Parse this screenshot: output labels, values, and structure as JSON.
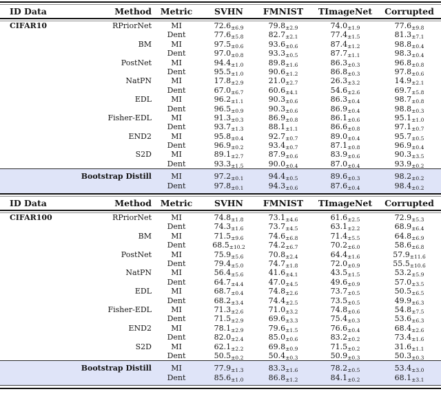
{
  "columns": [
    "ID Data",
    "Method",
    "Metric",
    "SVHN",
    "FMNIST",
    "TImageNet",
    "Corrupted"
  ],
  "highlight_color": "#dfe4f8",
  "sections": [
    {
      "id_data": "CIFAR10",
      "methods": [
        {
          "name": "RPriorNet",
          "rows": [
            {
              "metric": "MI",
              "values": [
                [
                  "72.6",
                  "±6.9"
                ],
                [
                  "79.8",
                  "±2.9"
                ],
                [
                  "74.0",
                  "±1.9"
                ],
                [
                  "77.6",
                  "±9.8"
                ]
              ]
            },
            {
              "metric": "Dent",
              "values": [
                [
                  "77.6",
                  "±5.8"
                ],
                [
                  "82.7",
                  "±2.1"
                ],
                [
                  "77.4",
                  "±1.5"
                ],
                [
                  "81.3",
                  "±7.1"
                ]
              ]
            }
          ]
        },
        {
          "name": "BM",
          "rows": [
            {
              "metric": "MI",
              "values": [
                [
                  "97.5",
                  "±0.6"
                ],
                [
                  "93.6",
                  "±0.6"
                ],
                [
                  "87.4",
                  "±1.2"
                ],
                [
                  "98.8",
                  "±0.4"
                ]
              ]
            },
            {
              "metric": "Dent",
              "values": [
                [
                  "97.0",
                  "±0.8"
                ],
                [
                  "93.3",
                  "±0.5"
                ],
                [
                  "87.7",
                  "±1.1"
                ],
                [
                  "98.3",
                  "±0.4"
                ]
              ]
            }
          ]
        },
        {
          "name": "PostNet",
          "rows": [
            {
              "metric": "MI",
              "values": [
                [
                  "94.4",
                  "±1.0"
                ],
                [
                  "89.8",
                  "±1.6"
                ],
                [
                  "86.3",
                  "±0.3"
                ],
                [
                  "96.8",
                  "±0.8"
                ]
              ]
            },
            {
              "metric": "Dent",
              "values": [
                [
                  "95.5",
                  "±1.0"
                ],
                [
                  "90.6",
                  "±1.2"
                ],
                [
                  "86.8",
                  "±0.3"
                ],
                [
                  "97.8",
                  "±0.6"
                ]
              ]
            }
          ]
        },
        {
          "name": "NatPN",
          "rows": [
            {
              "metric": "MI",
              "values": [
                [
                  "17.8",
                  "±2.9"
                ],
                [
                  "21.0",
                  "±2.7"
                ],
                [
                  "26.3",
                  "±3.2"
                ],
                [
                  "14.9",
                  "±2.1"
                ]
              ]
            },
            {
              "metric": "Dent",
              "values": [
                [
                  "67.0",
                  "±6.7"
                ],
                [
                  "60.6",
                  "±4.1"
                ],
                [
                  "54.6",
                  "±2.6"
                ],
                [
                  "69.7",
                  "±5.8"
                ]
              ]
            }
          ]
        },
        {
          "name": "EDL",
          "rows": [
            {
              "metric": "MI",
              "values": [
                [
                  "96.2",
                  "±1.1"
                ],
                [
                  "90.3",
                  "±0.6"
                ],
                [
                  "86.3",
                  "±0.4"
                ],
                [
                  "98.7",
                  "±0.8"
                ]
              ]
            },
            {
              "metric": "Dent",
              "values": [
                [
                  "96.5",
                  "±0.9"
                ],
                [
                  "90.3",
                  "±0.6"
                ],
                [
                  "86.9",
                  "±0.4"
                ],
                [
                  "98.8",
                  "±0.3"
                ]
              ]
            }
          ]
        },
        {
          "name": "Fisher-EDL",
          "rows": [
            {
              "metric": "MI",
              "values": [
                [
                  "91.3",
                  "±0.3"
                ],
                [
                  "86.9",
                  "±0.8"
                ],
                [
                  "86.1",
                  "±0.6"
                ],
                [
                  "95.1",
                  "±1.0"
                ]
              ]
            },
            {
              "metric": "Dent",
              "values": [
                [
                  "93.7",
                  "±1.3"
                ],
                [
                  "88.1",
                  "±1.1"
                ],
                [
                  "86.6",
                  "±0.8"
                ],
                [
                  "97.1",
                  "±0.7"
                ]
              ]
            }
          ]
        },
        {
          "name": "END2",
          "rows": [
            {
              "metric": "MI",
              "values": [
                [
                  "95.8",
                  "±0.4"
                ],
                [
                  "92.7",
                  "±0.7"
                ],
                [
                  "89.0",
                  "±0.4"
                ],
                [
                  "95.7",
                  "±0.5"
                ]
              ]
            },
            {
              "metric": "Dent",
              "values": [
                [
                  "96.9",
                  "±0.2"
                ],
                [
                  "93.4",
                  "±0.7"
                ],
                [
                  "87.1",
                  "±0.8"
                ],
                [
                  "96.9",
                  "±0.4"
                ]
              ]
            }
          ]
        },
        {
          "name": "S2D",
          "rows": [
            {
              "metric": "MI",
              "values": [
                [
                  "89.1",
                  "±2.7"
                ],
                [
                  "87.9",
                  "±0.6"
                ],
                [
                  "83.9",
                  "±0.6"
                ],
                [
                  "90.3",
                  "±3.5"
                ]
              ]
            },
            {
              "metric": "Dent",
              "values": [
                [
                  "93.3",
                  "±1.5"
                ],
                [
                  "90.0",
                  "±0.4"
                ],
                [
                  "87.0",
                  "±0.4"
                ],
                [
                  "93.9",
                  "±0.2"
                ]
              ]
            }
          ]
        }
      ],
      "distill": {
        "name": "Bootstrap Distill",
        "rows": [
          {
            "metric": "MI",
            "values": [
              [
                "97.2",
                "±0.1"
              ],
              [
                "94.4",
                "±0.5"
              ],
              [
                "89.6",
                "±0.3"
              ],
              [
                "98.2",
                "±0.2"
              ]
            ]
          },
          {
            "metric": "Dent",
            "values": [
              [
                "97.8",
                "±0.1"
              ],
              [
                "94.3",
                "±0.6"
              ],
              [
                "87.6",
                "±0.4"
              ],
              [
                "98.4",
                "±0.2"
              ]
            ]
          }
        ]
      }
    },
    {
      "id_data": "CIFAR100",
      "methods": [
        {
          "name": "RPriorNet",
          "rows": [
            {
              "metric": "MI",
              "values": [
                [
                  "74.8",
                  "±1.8"
                ],
                [
                  "73.1",
                  "±4.6"
                ],
                [
                  "61.6",
                  "±2.5"
                ],
                [
                  "72.9",
                  "±5.3"
                ]
              ]
            },
            {
              "metric": "Dent",
              "values": [
                [
                  "74.3",
                  "±1.6"
                ],
                [
                  "73.7",
                  "±4.5"
                ],
                [
                  "63.1",
                  "±2.2"
                ],
                [
                  "68.9",
                  "±6.4"
                ]
              ]
            }
          ]
        },
        {
          "name": "BM",
          "rows": [
            {
              "metric": "MI",
              "values": [
                [
                  "71.5",
                  "±9.6"
                ],
                [
                  "74.6",
                  "±6.8"
                ],
                [
                  "71.4",
                  "±5.5"
                ],
                [
                  "64.8",
                  "±6.9"
                ]
              ]
            },
            {
              "metric": "Dent",
              "values": [
                [
                  "68.5",
                  "±10.2"
                ],
                [
                  "74.2",
                  "±6.7"
                ],
                [
                  "70.2",
                  "±6.0"
                ],
                [
                  "58.6",
                  "±6.8"
                ]
              ]
            }
          ]
        },
        {
          "name": "PostNet",
          "rows": [
            {
              "metric": "MI",
              "values": [
                [
                  "75.9",
                  "±5.6"
                ],
                [
                  "70.8",
                  "±2.4"
                ],
                [
                  "64.4",
                  "±1.6"
                ],
                [
                  "57.9",
                  "±11.6"
                ]
              ]
            },
            {
              "metric": "Dent",
              "values": [
                [
                  "79.4",
                  "±5.0"
                ],
                [
                  "74.7",
                  "±1.8"
                ],
                [
                  "72.0",
                  "±0.9"
                ],
                [
                  "55.5",
                  "±10.6"
                ]
              ]
            }
          ]
        },
        {
          "name": "NatPN",
          "rows": [
            {
              "metric": "MI",
              "values": [
                [
                  "56.4",
                  "±5.6"
                ],
                [
                  "41.6",
                  "±4.1"
                ],
                [
                  "43.5",
                  "±1.5"
                ],
                [
                  "53.2",
                  "±5.9"
                ]
              ]
            },
            {
              "metric": "Dent",
              "values": [
                [
                  "64.7",
                  "±4.4"
                ],
                [
                  "47.0",
                  "±4.5"
                ],
                [
                  "49.6",
                  "±0.9"
                ],
                [
                  "57.0",
                  "±3.5"
                ]
              ]
            }
          ]
        },
        {
          "name": "EDL",
          "rows": [
            {
              "metric": "MI",
              "values": [
                [
                  "68.7",
                  "±0.4"
                ],
                [
                  "74.8",
                  "±2.6"
                ],
                [
                  "73.7",
                  "±0.5"
                ],
                [
                  "50.5",
                  "±6.5"
                ]
              ]
            },
            {
              "metric": "Dent",
              "values": [
                [
                  "68.2",
                  "±3.4"
                ],
                [
                  "74.4",
                  "±2.5"
                ],
                [
                  "73.5",
                  "±0.5"
                ],
                [
                  "49.9",
                  "±6.3"
                ]
              ]
            }
          ]
        },
        {
          "name": "Fisher-EDL",
          "rows": [
            {
              "metric": "MI",
              "values": [
                [
                  "71.3",
                  "±2.6"
                ],
                [
                  "71.0",
                  "±3.2"
                ],
                [
                  "74.8",
                  "±0.6"
                ],
                [
                  "54.8",
                  "±7.5"
                ]
              ]
            },
            {
              "metric": "Dent",
              "values": [
                [
                  "71.5",
                  "±2.9"
                ],
                [
                  "69.6",
                  "±3.3"
                ],
                [
                  "75.4",
                  "±0.3"
                ],
                [
                  "53.6",
                  "±6.3"
                ]
              ]
            }
          ]
        },
        {
          "name": "END2",
          "rows": [
            {
              "metric": "MI",
              "values": [
                [
                  "78.1",
                  "±2.9"
                ],
                [
                  "79.6",
                  "±1.5"
                ],
                [
                  "76.6",
                  "±0.4"
                ],
                [
                  "68.4",
                  "±2.6"
                ]
              ]
            },
            {
              "metric": "Dent",
              "values": [
                [
                  "82.0",
                  "±2.4"
                ],
                [
                  "85.0",
                  "±0.6"
                ],
                [
                  "83.2",
                  "±0.2"
                ],
                [
                  "73.4",
                  "±1.6"
                ]
              ]
            }
          ]
        },
        {
          "name": "S2D",
          "rows": [
            {
              "metric": "MI",
              "values": [
                [
                  "62.1",
                  "±2.2"
                ],
                [
                  "69.8",
                  "±0.9"
                ],
                [
                  "71.5",
                  "±0.2"
                ],
                [
                  "31.6",
                  "±1.1"
                ]
              ]
            },
            {
              "metric": "Dent",
              "values": [
                [
                  "50.5",
                  "±0.2"
                ],
                [
                  "50.4",
                  "±0.3"
                ],
                [
                  "50.9",
                  "±0.3"
                ],
                [
                  "50.3",
                  "±0.3"
                ]
              ]
            }
          ]
        }
      ],
      "distill": {
        "name": "Bootstrap Distill",
        "rows": [
          {
            "metric": "MI",
            "values": [
              [
                "77.9",
                "±1.3"
              ],
              [
                "83.3",
                "±1.6"
              ],
              [
                "78.2",
                "±0.5"
              ],
              [
                "53.4",
                "±3.0"
              ]
            ]
          },
          {
            "metric": "Dent",
            "values": [
              [
                "85.6",
                "±1.0"
              ],
              [
                "86.8",
                "±1.2"
              ],
              [
                "84.1",
                "±0.2"
              ],
              [
                "68.1",
                "±3.1"
              ]
            ]
          }
        ]
      }
    }
  ]
}
